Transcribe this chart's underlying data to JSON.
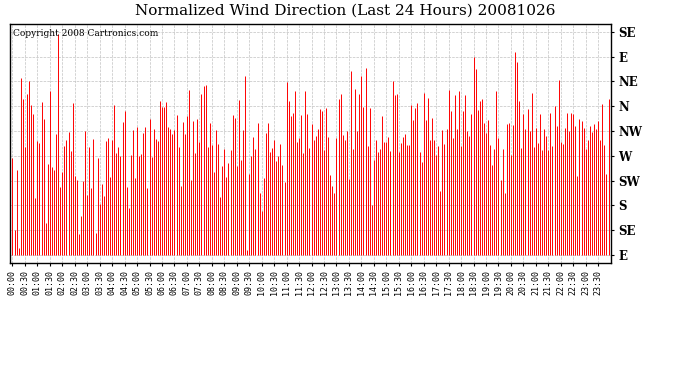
{
  "title": "Normalized Wind Direction (Last 24 Hours) 20081026",
  "copyright_text": "Copyright 2008 Cartronics.com",
  "line_color": "#ff0000",
  "background_color": "#ffffff",
  "grid_color": "#bbbbbb",
  "ytick_labels": [
    "SE",
    "E",
    "NE",
    "N",
    "NW",
    "W",
    "SW",
    "S",
    "SE",
    "E"
  ],
  "ytick_values": [
    9,
    8,
    7,
    6,
    5,
    4,
    3,
    2,
    1,
    0
  ],
  "ylim": [
    -0.3,
    9.3
  ],
  "seed": 12345,
  "n_points": 288,
  "title_fontsize": 11,
  "copyright_fontsize": 6.5,
  "tick_fontsize": 6.0,
  "label_fontsize": 8.5
}
